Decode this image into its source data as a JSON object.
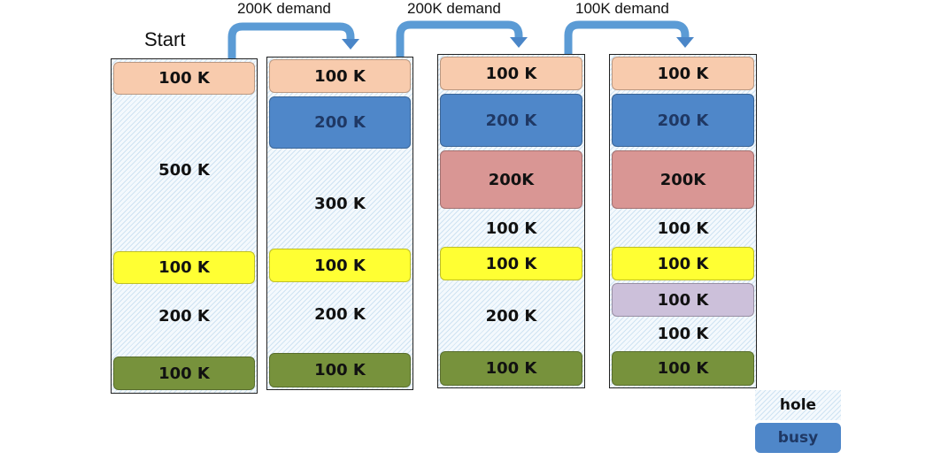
{
  "start_label": "Start",
  "demands": [
    "200K demand",
    "200K demand",
    "100K demand"
  ],
  "colors": {
    "os": "#f8cbad",
    "alloc_200": "#4f87c9",
    "alloc_200_new": "#d99694",
    "yellow": "#ffff33",
    "green": "#77923c",
    "lavender": "#ccc0da",
    "arrow": "#5b9bd5"
  },
  "columns": [
    {
      "blocks": [
        {
          "label": "100 K",
          "kind": "os"
        },
        {
          "label": "500 K",
          "kind": "hole"
        },
        {
          "label": "100 K",
          "kind": "yellow"
        },
        {
          "label": "200 K",
          "kind": "hole"
        },
        {
          "label": "100 K",
          "kind": "green"
        }
      ]
    },
    {
      "blocks": [
        {
          "label": "100 K",
          "kind": "os"
        },
        {
          "label": "200 K",
          "kind": "alloc_200"
        },
        {
          "label": "300 K",
          "kind": "hole"
        },
        {
          "label": "100 K",
          "kind": "yellow"
        },
        {
          "label": "200 K",
          "kind": "hole"
        },
        {
          "label": "100 K",
          "kind": "green"
        }
      ]
    },
    {
      "blocks": [
        {
          "label": "100 K",
          "kind": "os"
        },
        {
          "label": "200 K",
          "kind": "alloc_200"
        },
        {
          "label": "200K",
          "kind": "alloc_200_new"
        },
        {
          "label": "100 K",
          "kind": "hole"
        },
        {
          "label": "100 K",
          "kind": "yellow"
        },
        {
          "label": "200 K",
          "kind": "hole"
        },
        {
          "label": "100 K",
          "kind": "green"
        }
      ]
    },
    {
      "blocks": [
        {
          "label": "100 K",
          "kind": "os"
        },
        {
          "label": "200 K",
          "kind": "alloc_200"
        },
        {
          "label": "200K",
          "kind": "alloc_200_new"
        },
        {
          "label": "100 K",
          "kind": "hole"
        },
        {
          "label": "100 K",
          "kind": "yellow"
        },
        {
          "label": "100 K",
          "kind": "lavender"
        },
        {
          "label": "100 K",
          "kind": "hole"
        },
        {
          "label": "100 K",
          "kind": "green"
        }
      ]
    }
  ],
  "legend": {
    "hole_label": "hole",
    "busy_label": "busy"
  }
}
